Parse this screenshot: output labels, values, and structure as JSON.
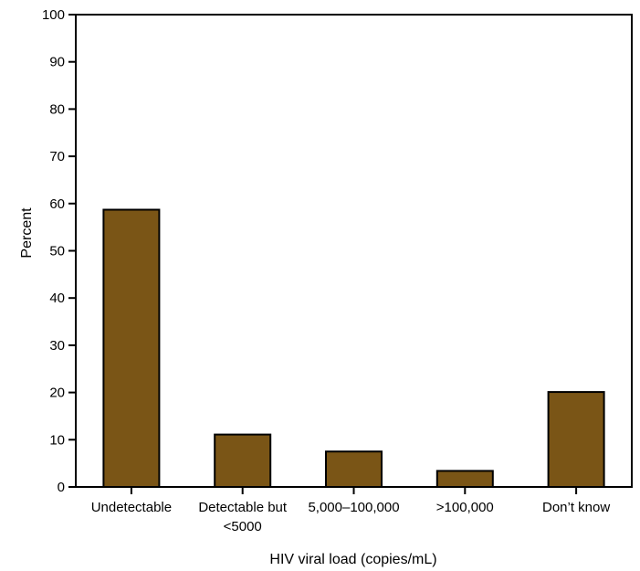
{
  "chart_data": {
    "type": "bar",
    "title": "",
    "xlabel": "HIV viral load (copies/mL)",
    "ylabel": "Percent",
    "categories": [
      [
        "Undetectable"
      ],
      [
        "Detectable but",
        "<5000"
      ],
      [
        "5,000–100,000"
      ],
      [
        ">100,000"
      ],
      [
        "Don’t know"
      ]
    ],
    "values": [
      58.7,
      11.1,
      7.5,
      3.4,
      20.1
    ],
    "ylim": [
      0,
      100
    ],
    "yticks": [
      0,
      10,
      20,
      30,
      40,
      50,
      60,
      70,
      80,
      90,
      100
    ],
    "grid": false,
    "legend": "none",
    "colors": {
      "bar_fill": "#7a5516",
      "bar_stroke": "#000000",
      "axis": "#000000"
    }
  }
}
